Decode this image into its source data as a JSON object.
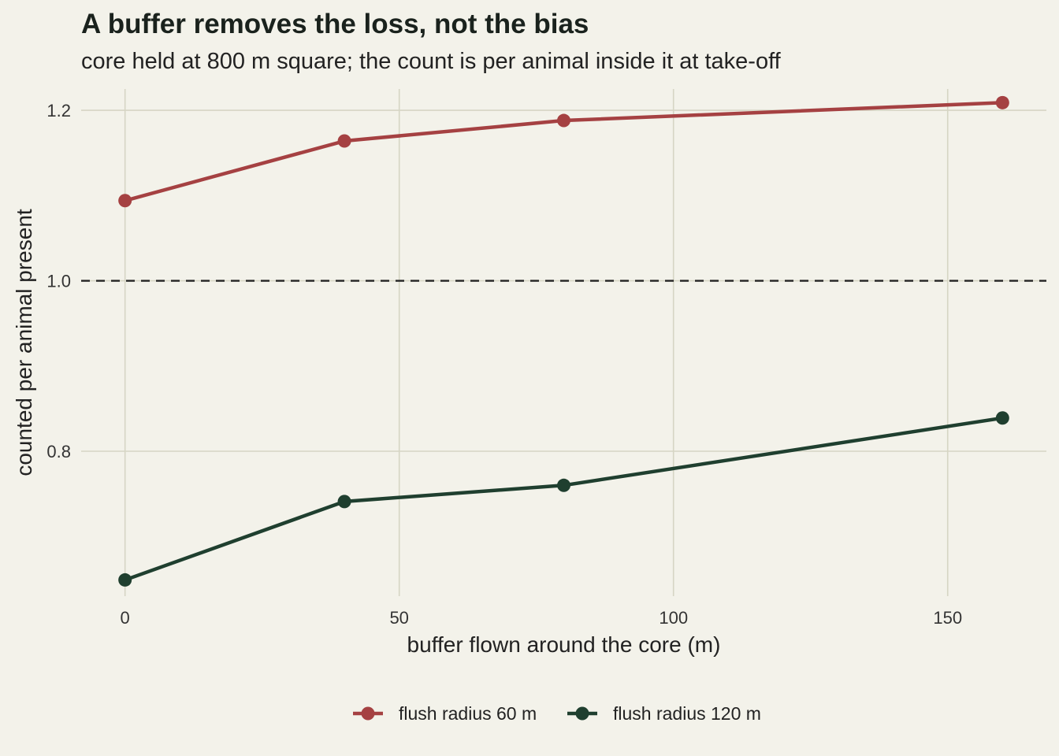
{
  "chart_data": {
    "type": "line",
    "title": "A buffer removes the loss, not the bias",
    "subtitle": "core held at 800 m square; the count is per animal inside it at take-off",
    "xlabel": "buffer flown around the core (m)",
    "ylabel": "counted per animal present",
    "x": [
      0,
      40,
      80,
      160
    ],
    "xlim": [
      -8,
      168
    ],
    "ylim": [
      0.63,
      1.225
    ],
    "xticks": [
      0,
      50,
      100,
      150
    ],
    "xtick_labels": [
      "0",
      "50",
      "100",
      "150"
    ],
    "yticks": [
      0.8,
      1.0,
      1.2
    ],
    "ytick_labels": [
      "0.8",
      "1.0",
      "1.2"
    ],
    "reference_line": {
      "y": 1.0,
      "style": "dashed",
      "color": "#222222"
    },
    "grid": true,
    "legend_position": "bottom",
    "series": [
      {
        "name": "flush radius 60 m",
        "color": "#a54142",
        "values": [
          1.094,
          1.164,
          1.188,
          1.209
        ]
      },
      {
        "name": "flush radius 120 m",
        "color": "#1f3f2f",
        "values": [
          0.649,
          0.741,
          0.76,
          0.839
        ]
      }
    ]
  }
}
